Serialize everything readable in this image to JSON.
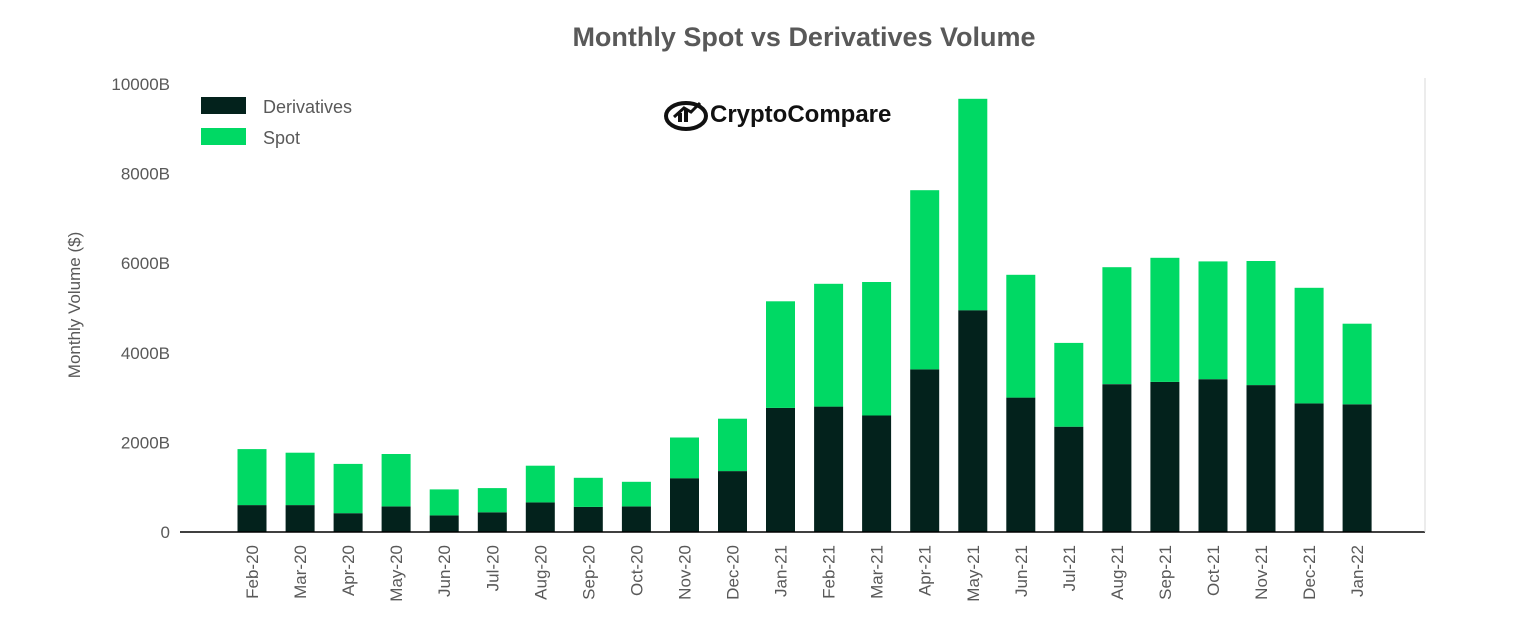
{
  "chart_data": {
    "type": "bar",
    "stacked": true,
    "title": "Monthly Spot vs Derivatives Volume",
    "xlabel": "",
    "ylabel": "Monthly Volume ($)",
    "ylim": [
      0,
      10000
    ],
    "yticks": [
      0,
      2000,
      4000,
      6000,
      8000,
      10000
    ],
    "ytick_labels": [
      "0",
      "2000B",
      "4000B",
      "6000B",
      "8000B",
      "10000B"
    ],
    "categories": [
      "Feb-20",
      "Mar-20",
      "Apr-20",
      "May-20",
      "Jun-20",
      "Jul-20",
      "Aug-20",
      "Sep-20",
      "Oct-20",
      "Nov-20",
      "Dec-20",
      "Jan-21",
      "Feb-21",
      "Mar-21",
      "Apr-21",
      "May-21",
      "Jun-21",
      "Jul-21",
      "Aug-21",
      "Sep-21",
      "Oct-21",
      "Nov-21",
      "Dec-21",
      "Jan-22"
    ],
    "series": [
      {
        "name": "Derivatives",
        "color": "#03221c",
        "values": [
          600,
          600,
          420,
          570,
          370,
          440,
          660,
          560,
          570,
          1200,
          1360,
          2770,
          2800,
          2600,
          3630,
          4950,
          3000,
          2350,
          3300,
          3350,
          3410,
          3280,
          2870,
          2850
        ]
      },
      {
        "name": "Spot",
        "color": "#00d964",
        "values": [
          1250,
          1170,
          1100,
          1170,
          580,
          540,
          820,
          650,
          550,
          910,
          1170,
          2380,
          2740,
          2980,
          4000,
          4720,
          2740,
          1870,
          2610,
          2770,
          2630,
          2770,
          2580,
          1800
        ]
      }
    ],
    "legend": [
      "Derivatives",
      "Spot"
    ],
    "legend_position": "top-left",
    "grid": false
  },
  "watermark": {
    "text": "CryptoCompare"
  }
}
